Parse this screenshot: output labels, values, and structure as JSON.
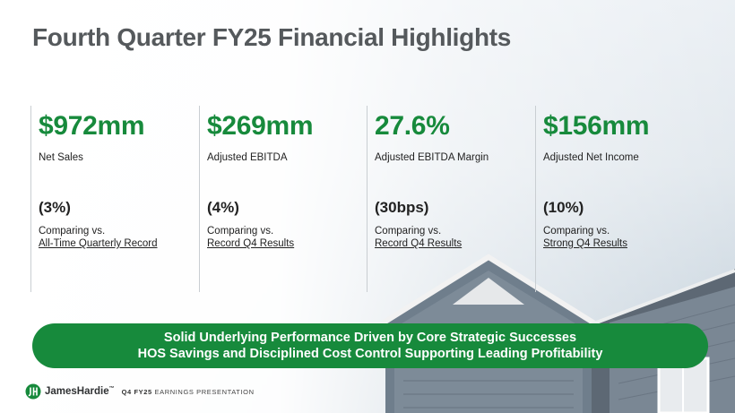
{
  "slide": {
    "title": "Fourth Quarter FY25 Financial Highlights"
  },
  "metrics": [
    {
      "value": "$972mm",
      "label": "Net Sales",
      "change": "(3%)",
      "comparing": "Comparing vs.",
      "comparison": "All-Time Quarterly Record"
    },
    {
      "value": "$269mm",
      "label": "Adjusted EBITDA",
      "change": "(4%)",
      "comparing": "Comparing vs.",
      "comparison": "Record Q4 Results"
    },
    {
      "value": "27.6%",
      "label": "Adjusted EBITDA Margin",
      "change": "(30bps)",
      "comparing": "Comparing vs.",
      "comparison": "Record Q4 Results"
    },
    {
      "value": "$156mm",
      "label": "Adjusted Net Income",
      "change": "(10%)",
      "comparing": "Comparing vs.",
      "comparison": "Strong Q4 Results"
    }
  ],
  "banner": {
    "line1": "Solid Underlying Performance Driven by Core Strategic Successes",
    "line2": "HOS Savings and Disciplined Cost Control Supporting Leading Profitability"
  },
  "footer": {
    "brand": "JamesHardie",
    "tm": "™",
    "period": "Q4 FY25",
    "subtitle": "EARNINGS PRESENTATION"
  },
  "colors": {
    "accent": "#178a3c",
    "title": "#55595c"
  }
}
